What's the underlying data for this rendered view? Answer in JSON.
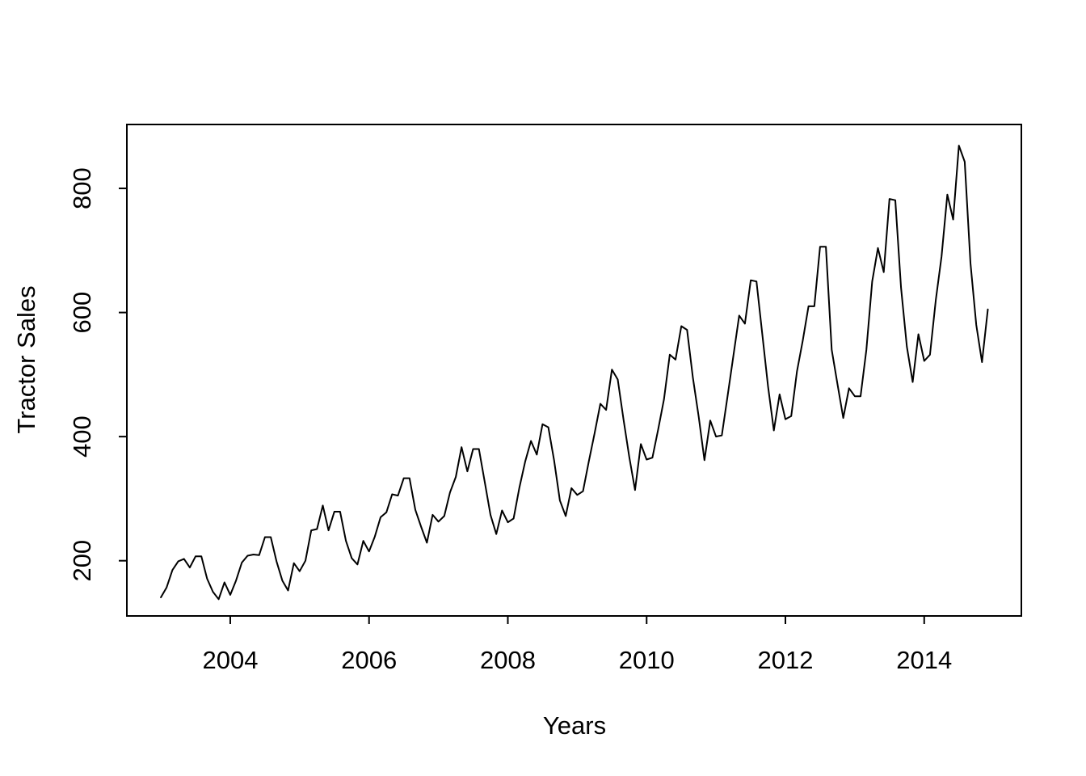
{
  "figure": {
    "background_color": "#ffffff",
    "line_color": "#000000",
    "axis_color": "#000000",
    "tick_label_color": "#000000"
  },
  "chart_data": {
    "type": "line",
    "title": "",
    "xlabel": "Years",
    "ylabel": "Tractor Sales",
    "grid": false,
    "legend": "none",
    "x_start_year": 2003,
    "x_months_per_point": 1,
    "xlim": [
      2002.51,
      2015.4
    ],
    "ylim": [
      111,
      903
    ],
    "x_tick_values": [
      2004,
      2006,
      2008,
      2010,
      2012,
      2014
    ],
    "x_tick_labels": [
      "2004",
      "2006",
      "2008",
      "2010",
      "2012",
      "2014"
    ],
    "y_tick_values": [
      200,
      400,
      600,
      800
    ],
    "y_tick_labels": [
      "200",
      "400",
      "600",
      "800"
    ],
    "series": [
      {
        "name": "Tractor Sales",
        "values": [
          141,
          157,
          185,
          199,
          203,
          189,
          207,
          207,
          171,
          150,
          138,
          165,
          145,
          168,
          197,
          208,
          210,
          209,
          238,
          238,
          199,
          168,
          152,
          196,
          183,
          200,
          249,
          251,
          289,
          249,
          279,
          279,
          232,
          204,
          194,
          232,
          215,
          239,
          270,
          278,
          307,
          305,
          333,
          333,
          282,
          255,
          229,
          274,
          263,
          272,
          310,
          335,
          383,
          344,
          380,
          380,
          327,
          274,
          243,
          281,
          262,
          268,
          318,
          360,
          393,
          371,
          420,
          415,
          362,
          297,
          272,
          317,
          306,
          312,
          360,
          405,
          453,
          443,
          508,
          492,
          428,
          367,
          314,
          388,
          363,
          366,
          412,
          460,
          532,
          524,
          578,
          572,
          495,
          432,
          362,
          426,
          400,
          402,
          465,
          530,
          595,
          582,
          652,
          650,
          565,
          481,
          410,
          468,
          428,
          433,
          505,
          555,
          610,
          610,
          706,
          706,
          540,
          485,
          430,
          478,
          465,
          465,
          540,
          650,
          704,
          665,
          783,
          781,
          640,
          545,
          488,
          565,
          522,
          532,
          620,
          690,
          790,
          750,
          869,
          843,
          680,
          580,
          520,
          605
        ]
      }
    ]
  }
}
